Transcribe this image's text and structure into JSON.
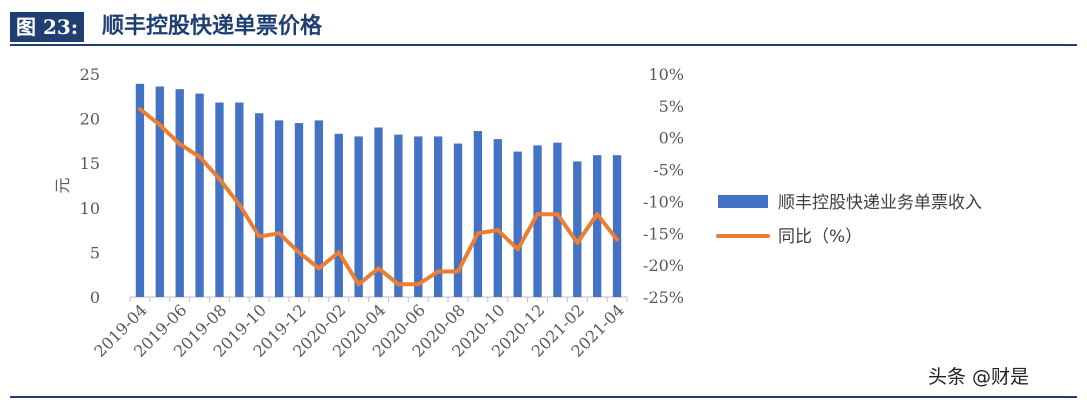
{
  "figure": {
    "label": "图 23:",
    "title": "顺丰控股快递单票价格",
    "watermark": "头条 @财是"
  },
  "colors": {
    "bar": "#4472c4",
    "line": "#ed7d31",
    "title_bg": "#1f3f73"
  },
  "chart_data": {
    "type": "bar+line",
    "categories": [
      "2019-04",
      "2019-05",
      "2019-06",
      "2019-07",
      "2019-08",
      "2019-09",
      "2019-10",
      "2019-11",
      "2019-12",
      "2020-01",
      "2020-02",
      "2020-03",
      "2020-04",
      "2020-05",
      "2020-06",
      "2020-07",
      "2020-08",
      "2020-09",
      "2020-10",
      "2020-11",
      "2020-12",
      "2021-01",
      "2021-02",
      "2021-03",
      "2021-04"
    ],
    "xtick_labels": [
      "2019-04",
      "2019-06",
      "2019-08",
      "2019-10",
      "2019-12",
      "2020-02",
      "2020-04",
      "2020-06",
      "2020-08",
      "2020-10",
      "2020-12",
      "2021-02",
      "2021-04"
    ],
    "ylabel_left": "元",
    "ylim_left": [
      0,
      25
    ],
    "yticks_left": [
      "0",
      "5",
      "10",
      "15",
      "20",
      "25"
    ],
    "ylim_right": [
      -25,
      10
    ],
    "yticks_right": [
      "-25%",
      "-20%",
      "-15%",
      "-10%",
      "-5%",
      "0%",
      "5%",
      "10%"
    ],
    "legend_position": "right",
    "series": [
      {
        "name": "顺丰控股快递业务单票收入",
        "type": "bar",
        "axis": "left",
        "values": [
          23.9,
          23.6,
          23.3,
          22.8,
          21.8,
          21.8,
          20.6,
          19.8,
          19.5,
          19.8,
          18.3,
          18.0,
          19.0,
          18.2,
          18.0,
          18.0,
          17.2,
          18.6,
          17.7,
          16.3,
          17.0,
          17.3,
          15.2,
          15.9,
          15.9
        ]
      },
      {
        "name": "同比（%）",
        "type": "line",
        "axis": "right",
        "values": [
          4.5,
          2.0,
          -1.0,
          -3.0,
          -6.5,
          -10.5,
          -15.5,
          -15.0,
          -18.0,
          -20.5,
          -18.0,
          -23.0,
          -20.5,
          -23.0,
          -23.0,
          -21.0,
          -21.0,
          -15.0,
          -14.5,
          -17.5,
          -12.0,
          -12.0,
          -16.5,
          -12.0,
          -16.0
        ]
      }
    ]
  }
}
